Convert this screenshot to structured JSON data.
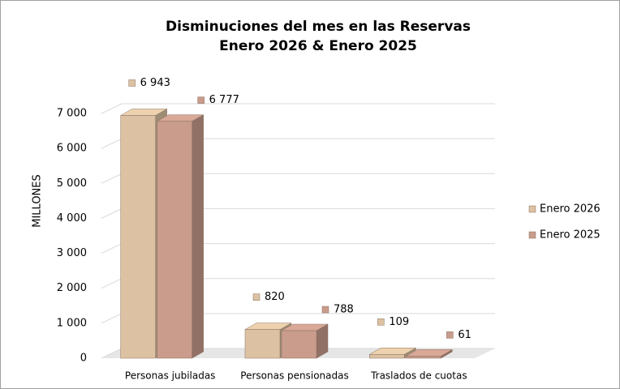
{
  "chart_data": {
    "type": "bar3d",
    "title": [
      "Disminuciones del mes en las Reservas",
      "Enero 2026 & Enero 2025"
    ],
    "y_label": "MILLONES",
    "categories": [
      "Personas jubiladas",
      "Personas pensionadas",
      "Traslados de cuotas"
    ],
    "series": [
      {
        "name": "Enero 2026",
        "color": "#dcc2a2",
        "values": [
          6943,
          820,
          109
        ],
        "value_labels": [
          "6 943",
          "820",
          "109"
        ]
      },
      {
        "name": "Enero 2025",
        "color": "#c99c8c",
        "values": [
          6777,
          788,
          61
        ],
        "value_labels": [
          "6 777",
          "788",
          "61"
        ]
      }
    ],
    "ylim": [
      0,
      7000
    ],
    "yticks": [
      0,
      {
        "value": 1000,
        "label": "1 000"
      },
      {
        "value": 2000,
        "label": "2 000"
      },
      {
        "value": 3000,
        "label": "3 000"
      },
      {
        "value": 4000,
        "label": "4 000"
      },
      {
        "value": 5000,
        "label": "5 000"
      },
      {
        "value": 6000,
        "label": "6 000"
      },
      {
        "value": 7000,
        "label": "7 000"
      }
    ],
    "grid": true,
    "legend": "right"
  }
}
